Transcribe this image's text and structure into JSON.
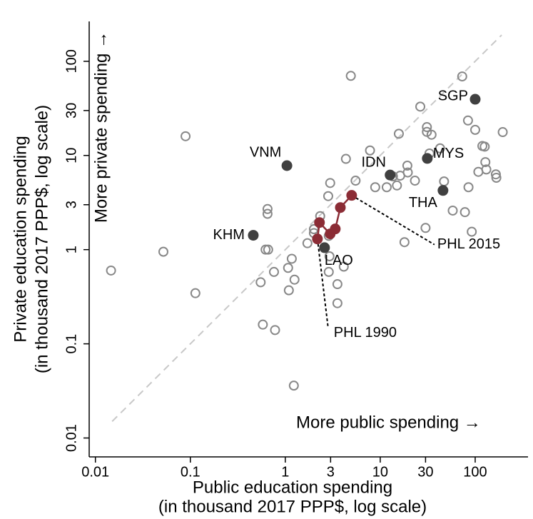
{
  "chart_data": {
    "type": "scatter",
    "log_x": true,
    "log_y": true,
    "x_label": [
      "Public education spending",
      "(in thousand 2017 PPP$, log scale)"
    ],
    "y_label": [
      "Private education spending",
      "(in thousand 2017 PPP$, log scale)"
    ],
    "xlim": [
      0.0086,
      360
    ],
    "ylim": [
      0.0063,
      265
    ],
    "xticks": [
      0.01,
      0.1,
      1,
      3,
      10,
      30,
      100
    ],
    "yticks": [
      0.01,
      0.1,
      1,
      3,
      10,
      30,
      100
    ],
    "diagonal": {
      "from": 0.015,
      "to": 190,
      "color": "#c8c8c8"
    },
    "arrow_texts": {
      "x": "More public spending →",
      "y": "More private spending →"
    },
    "series": [
      {
        "style": "hollow",
        "color": "#888888",
        "x": [
          0.0146,
          0.052,
          0.089,
          0.113,
          0.65,
          0.65,
          0.62,
          0.66,
          0.55,
          0.58,
          0.76,
          0.78,
          1.07,
          1.17,
          1.09,
          1.25,
          1.23,
          1.71,
          2.0,
          2.0,
          2.33,
          2.87,
          2.92,
          2.87,
          2.83,
          2.97,
          3.54,
          3.54,
          4.13,
          4.35,
          4.9,
          5.5,
          7.8,
          8.85,
          11.7,
          13.6,
          15,
          16.2,
          18,
          15.7,
          19.3,
          19.5,
          23.2,
          26.4,
          31,
          31,
          34.7,
          42.7,
          33,
          30,
          47,
          58,
          78,
          73,
          84,
          100,
          85,
          108,
          119,
          128,
          126,
          131,
          167,
          165,
          195,
          92
        ],
        "values": [
          0.6,
          0.95,
          16,
          0.345,
          2.7,
          2.4,
          1.0,
          1.0,
          0.45,
          0.16,
          0.58,
          0.14,
          0.64,
          0.8,
          0.37,
          0.48,
          0.036,
          1.17,
          1.5,
          1.65,
          2.27,
          0.58,
          0.85,
          1.4,
          3.7,
          5.1,
          0.43,
          0.27,
          0.66,
          9.2,
          70,
          5.4,
          11.3,
          4.6,
          4.6,
          6.0,
          4.8,
          6.1,
          1.2,
          17,
          7.8,
          6.6,
          5.4,
          33,
          20,
          17.8,
          16.6,
          11.9,
          10.5,
          1.7,
          5.3,
          2.6,
          2.5,
          69,
          23.5,
          18.7,
          4.6,
          6.7,
          12.6,
          8.5,
          12.4,
          7.1,
          5.8,
          6.3,
          17.7,
          1.55
        ]
      },
      {
        "style": "filled",
        "color": "#404040",
        "labels": [
          "VNM",
          "KHM",
          "LAO",
          "IDN",
          "MYS",
          "THA",
          "SGP"
        ],
        "x": [
          1.04,
          0.46,
          2.59,
          12.7,
          31.3,
          45.8,
          100
        ],
        "values": [
          7.8,
          1.42,
          1.05,
          6.2,
          9.3,
          4.25,
          39.5
        ]
      },
      {
        "style": "path",
        "color": "#8b2c35",
        "x": [
          2.18,
          2.29,
          2.97,
          3.36,
          3.8,
          5.0
        ],
        "values": [
          1.3,
          1.94,
          1.47,
          1.66,
          2.8,
          3.77
        ]
      }
    ],
    "annotations": [
      {
        "text": "PHL 1990",
        "x": 3.24,
        "y": 0.13
      },
      {
        "text": "PHL 2015",
        "x": 39.9,
        "y": 1.13
      }
    ]
  }
}
